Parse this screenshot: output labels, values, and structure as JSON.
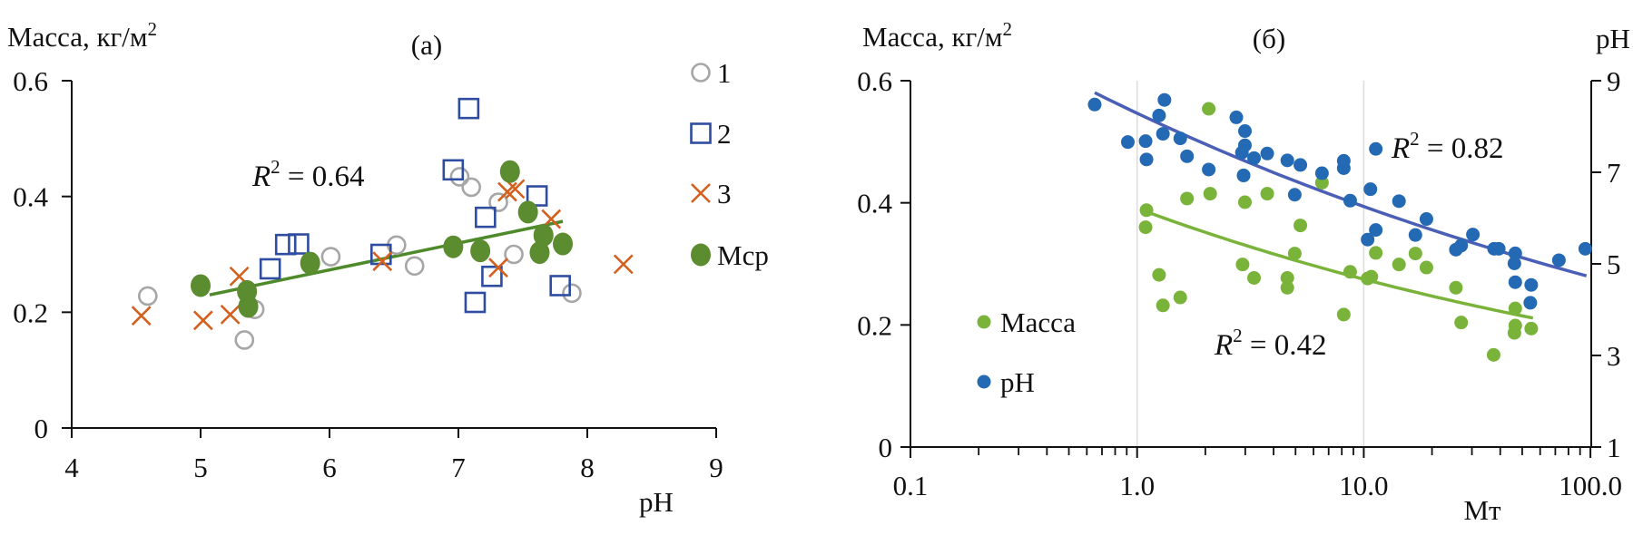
{
  "chart_data": [
    {
      "panel_label": "(а)",
      "type": "scatter",
      "ylabel": {
        "text": "Масса, кг/м",
        "sup": "2"
      },
      "xlabel": "pH",
      "xlim": [
        4,
        9
      ],
      "ylim": [
        0,
        0.6
      ],
      "x_ticks": [
        "4",
        "5",
        "6",
        "7",
        "8",
        "9"
      ],
      "y_ticks": [
        "0",
        "0.2",
        "0.4",
        "0.6"
      ],
      "grid": false,
      "legend_position": "right",
      "series": [
        {
          "name": "1",
          "marker": "open-circle",
          "color": "#a6a6a6",
          "points": [
            [
              4.59,
              0.228
            ],
            [
              5.34,
              0.152
            ],
            [
              5.42,
              0.205
            ],
            [
              6.01,
              0.296
            ],
            [
              6.52,
              0.316
            ],
            [
              6.66,
              0.28
            ],
            [
              7.01,
              0.434
            ],
            [
              7.1,
              0.416
            ],
            [
              7.31,
              0.39
            ],
            [
              7.43,
              0.3
            ],
            [
              7.88,
              0.233
            ]
          ]
        },
        {
          "name": "2",
          "marker": "open-square",
          "color": "#2e4da0",
          "points": [
            [
              5.54,
              0.275
            ],
            [
              5.66,
              0.317
            ],
            [
              5.76,
              0.318
            ],
            [
              6.4,
              0.3
            ],
            [
              7.08,
              0.552
            ],
            [
              6.96,
              0.446
            ],
            [
              7.21,
              0.364
            ],
            [
              7.26,
              0.262
            ],
            [
              7.13,
              0.217
            ],
            [
              7.61,
              0.401
            ],
            [
              7.79,
              0.246
            ]
          ]
        },
        {
          "name": "3",
          "marker": "cross",
          "color": "#d4601f",
          "points": [
            [
              4.54,
              0.194
            ],
            [
              5.02,
              0.186
            ],
            [
              5.23,
              0.196
            ],
            [
              5.3,
              0.262
            ],
            [
              6.41,
              0.288
            ],
            [
              7.31,
              0.277
            ],
            [
              7.38,
              0.408
            ],
            [
              7.44,
              0.413
            ],
            [
              7.72,
              0.361
            ],
            [
              8.28,
              0.283
            ]
          ]
        },
        {
          "name": "Мср",
          "marker": "filled-circle",
          "color": "#5b8c2f",
          "points": [
            [
              5.0,
              0.246
            ],
            [
              5.36,
              0.236
            ],
            [
              5.37,
              0.21
            ],
            [
              5.85,
              0.285
            ],
            [
              6.96,
              0.313
            ],
            [
              7.17,
              0.306
            ],
            [
              7.4,
              0.443
            ],
            [
              7.54,
              0.373
            ],
            [
              7.66,
              0.333
            ],
            [
              7.63,
              0.303
            ],
            [
              7.81,
              0.318
            ]
          ]
        }
      ],
      "trendline": {
        "series": "Мср",
        "type": "linear",
        "from": [
          5.07,
          0.23
        ],
        "to": [
          7.81,
          0.357
        ],
        "color": "#4e8a2a"
      },
      "annotation": {
        "symbol": "R",
        "sup": "2",
        "text": " = 0.64"
      }
    },
    {
      "panel_label": "(б)",
      "type": "scatter",
      "ylabel": {
        "text": "Масса, кг/м",
        "sup": "2"
      },
      "y2label": "pH",
      "xlabel": "Мт",
      "xscale": "log",
      "xlim": [
        0.1,
        100
      ],
      "ylim": [
        0,
        0.6
      ],
      "y2lim": [
        1,
        9
      ],
      "x_ticks": [
        "0.1",
        "1.0",
        "10.0",
        "100.0"
      ],
      "y_ticks": [
        "0",
        "0.2",
        "0.4",
        "0.6"
      ],
      "y2_ticks": [
        "1",
        "3",
        "5",
        "7",
        "9"
      ],
      "grid": "vertical at 1 and 10",
      "legend_position": "bottom-left",
      "series": [
        {
          "name": "Масса",
          "axis": "left",
          "color": "#79b33a",
          "points": [
            [
              1.1,
              0.388
            ],
            [
              1.09,
              0.36
            ],
            [
              1.25,
              0.282
            ],
            [
              1.3,
              0.232
            ],
            [
              1.55,
              0.245
            ],
            [
              1.66,
              0.407
            ],
            [
              2.07,
              0.554
            ],
            [
              2.1,
              0.415
            ],
            [
              2.92,
              0.299
            ],
            [
              2.99,
              0.401
            ],
            [
              2.95,
              0.445
            ],
            [
              3.28,
              0.277
            ],
            [
              3.75,
              0.415
            ],
            [
              4.6,
              0.277
            ],
            [
              4.6,
              0.261
            ],
            [
              4.96,
              0.317
            ],
            [
              5.25,
              0.363
            ],
            [
              6.54,
              0.433
            ],
            [
              8.16,
              0.217
            ],
            [
              8.71,
              0.287
            ],
            [
              10.4,
              0.276
            ],
            [
              10.8,
              0.279
            ],
            [
              11.3,
              0.318
            ],
            [
              14.3,
              0.299
            ],
            [
              16.9,
              0.317
            ],
            [
              18.9,
              0.294
            ],
            [
              25.5,
              0.261
            ],
            [
              26.9,
              0.204
            ],
            [
              37.4,
              0.151
            ],
            [
              46.6,
              0.227
            ],
            [
              46.6,
              0.199
            ],
            [
              46.2,
              0.187
            ],
            [
              54.8,
              0.194
            ]
          ]
        },
        {
          "name": "pH",
          "axis": "right",
          "color": "#2469b3",
          "points": [
            [
              0.65,
              8.48
            ],
            [
              0.91,
              7.66
            ],
            [
              1.09,
              7.68
            ],
            [
              1.1,
              7.28
            ],
            [
              1.25,
              8.24
            ],
            [
              1.32,
              8.58
            ],
            [
              1.3,
              7.84
            ],
            [
              1.55,
              7.74
            ],
            [
              1.66,
              7.35
            ],
            [
              2.07,
              7.06
            ],
            [
              2.74,
              8.2
            ],
            [
              2.99,
              7.9
            ],
            [
              2.99,
              7.59
            ],
            [
              2.9,
              7.43
            ],
            [
              2.95,
              6.93
            ],
            [
              3.28,
              7.31
            ],
            [
              3.75,
              7.41
            ],
            [
              4.6,
              7.26
            ],
            [
              5.25,
              7.16
            ],
            [
              4.96,
              6.51
            ],
            [
              6.54,
              6.98
            ],
            [
              8.16,
              7.09
            ],
            [
              8.16,
              7.25
            ],
            [
              8.71,
              6.38
            ],
            [
              11.3,
              7.51
            ],
            [
              10.7,
              6.63
            ],
            [
              11.3,
              5.74
            ],
            [
              10.4,
              5.53
            ],
            [
              14.3,
              6.37
            ],
            [
              16.9,
              5.63
            ],
            [
              18.9,
              5.98
            ],
            [
              25.5,
              5.31
            ],
            [
              26.9,
              5.4
            ],
            [
              30.3,
              5.64
            ],
            [
              37.6,
              5.33
            ],
            [
              39.4,
              5.33
            ],
            [
              46.6,
              5.23
            ],
            [
              46.2,
              5.01
            ],
            [
              46.6,
              4.6
            ],
            [
              54.8,
              4.54
            ],
            [
              54.3,
              4.15
            ],
            [
              72.6,
              5.08
            ],
            [
              94.9,
              5.33
            ]
          ]
        }
      ],
      "trendlines": [
        {
          "series": "Масса",
          "type": "power",
          "a": 0.391,
          "b": -0.153,
          "x_range": [
            1.1,
            55.8
          ],
          "color": "#7ab33a",
          "annotation": {
            "symbol": "R",
            "sup": "2",
            "text": " = 0.42"
          }
        },
        {
          "series": "pH",
          "type": "power",
          "a": 8.29,
          "b": -0.1225,
          "x_range": [
            0.65,
            96
          ],
          "color": "#4a5fb5",
          "annotation": {
            "symbol": "R",
            "sup": "2",
            "text": " = 0.82"
          }
        }
      ]
    }
  ]
}
